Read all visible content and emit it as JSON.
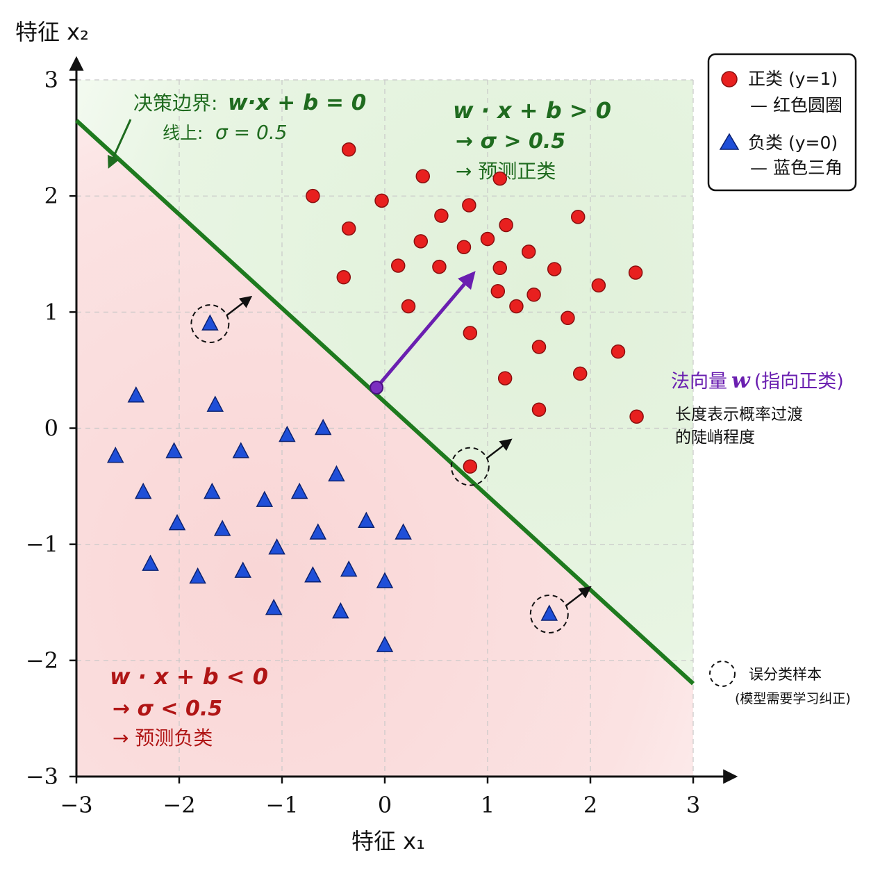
{
  "chart_data": {
    "type": "scatter",
    "xlabel": "特征 x₁",
    "ylabel": "特征 x₂",
    "xlim": [
      -3,
      3
    ],
    "ylim": [
      -3,
      3
    ],
    "x_ticks": [
      "−3",
      "−2",
      "−1",
      "0",
      "1",
      "2",
      "3"
    ],
    "y_ticks": [
      "−3",
      "−2",
      "−1",
      "0",
      "1",
      "2",
      "3"
    ],
    "grid": true,
    "decision_boundary": {
      "x1": -3,
      "y1": 2.65,
      "x2": 3,
      "y2": -2.2
    },
    "normal_vector": {
      "origin": [
        -0.08,
        0.35
      ],
      "tip": [
        0.85,
        1.32
      ]
    },
    "series": [
      {
        "name": "正类 (y=1)",
        "marker": "circle",
        "color": "#e8201f",
        "points": [
          [
            -0.35,
            2.4
          ],
          [
            -0.7,
            2.0
          ],
          [
            -0.4,
            1.3
          ],
          [
            -0.35,
            1.72
          ],
          [
            -0.03,
            1.96
          ],
          [
            0.37,
            2.17
          ],
          [
            1.12,
            2.15
          ],
          [
            0.55,
            1.83
          ],
          [
            0.82,
            1.92
          ],
          [
            0.35,
            1.61
          ],
          [
            1.0,
            1.63
          ],
          [
            1.18,
            1.75
          ],
          [
            1.88,
            1.82
          ],
          [
            0.77,
            1.56
          ],
          [
            0.13,
            1.4
          ],
          [
            0.53,
            1.39
          ],
          [
            1.12,
            1.38
          ],
          [
            1.4,
            1.52
          ],
          [
            1.65,
            1.37
          ],
          [
            2.44,
            1.34
          ],
          [
            1.1,
            1.18
          ],
          [
            1.45,
            1.15
          ],
          [
            2.08,
            1.23
          ],
          [
            0.23,
            1.05
          ],
          [
            1.28,
            1.05
          ],
          [
            1.78,
            0.95
          ],
          [
            0.83,
            0.82
          ],
          [
            1.5,
            0.7
          ],
          [
            2.27,
            0.66
          ],
          [
            1.9,
            0.47
          ],
          [
            1.17,
            0.43
          ],
          [
            1.5,
            0.16
          ],
          [
            2.45,
            0.1
          ],
          [
            0.83,
            -0.33
          ]
        ]
      },
      {
        "name": "负类 (y=0)",
        "marker": "triangle",
        "color": "#1f4fd8",
        "points": [
          [
            -1.7,
            0.9
          ],
          [
            -2.42,
            0.28
          ],
          [
            -1.65,
            0.2
          ],
          [
            -2.62,
            -0.24
          ],
          [
            -2.05,
            -0.2
          ],
          [
            -1.4,
            -0.2
          ],
          [
            -0.95,
            -0.06
          ],
          [
            -0.6,
            0.0
          ],
          [
            -2.35,
            -0.55
          ],
          [
            -1.68,
            -0.55
          ],
          [
            -0.83,
            -0.55
          ],
          [
            -0.47,
            -0.4
          ],
          [
            -1.17,
            -0.62
          ],
          [
            -2.02,
            -0.82
          ],
          [
            -1.58,
            -0.87
          ],
          [
            -0.65,
            -0.9
          ],
          [
            -0.18,
            -0.8
          ],
          [
            0.18,
            -0.9
          ],
          [
            -1.05,
            -1.03
          ],
          [
            -2.28,
            -1.17
          ],
          [
            -1.38,
            -1.23
          ],
          [
            -0.35,
            -1.22
          ],
          [
            -1.82,
            -1.28
          ],
          [
            -0.7,
            -1.27
          ],
          [
            0.0,
            -1.32
          ],
          [
            -1.08,
            -1.55
          ],
          [
            -0.43,
            -1.58
          ],
          [
            0.0,
            -1.87
          ],
          [
            1.6,
            -1.6
          ]
        ]
      }
    ],
    "misclassified": [
      [
        -1.7,
        0.9
      ],
      [
        0.83,
        -0.33
      ],
      [
        1.6,
        -1.6
      ]
    ]
  },
  "annotations": {
    "boundary_label": "决策边界:",
    "boundary_eq": "w·x + b = 0",
    "boundary_sub_label": "线上:",
    "boundary_sub_eq": "σ = 0.5",
    "pos_eq": "w · x + b > 0",
    "pos_sigma": "→ σ > 0.5",
    "pos_pred": "→ 预测正类",
    "neg_eq": "w · x + b < 0",
    "neg_sigma": "→ σ < 0.5",
    "neg_pred": "→ 预测负类",
    "normal_title_a": "法向量",
    "normal_title_w": "w",
    "normal_title_b": "(指向正类)",
    "normal_desc1": "长度表示概率过渡",
    "normal_desc2": "的陡峭程度",
    "mis_label": "误分类样本",
    "mis_sub": "(模型需要学习纠正)"
  },
  "legend": {
    "pos_label": "正类 (y=1)",
    "pos_desc": "— 红色圆圈",
    "neg_label": "负类 (y=0)",
    "neg_desc": "— 蓝色三角"
  },
  "colors": {
    "positive": "#e8201f",
    "negative": "#1f4fd8",
    "boundary": "#1e7a1e",
    "normal": "#6a1fb0",
    "pos_region": "#e3f2dd",
    "neg_region": "#fadada"
  }
}
